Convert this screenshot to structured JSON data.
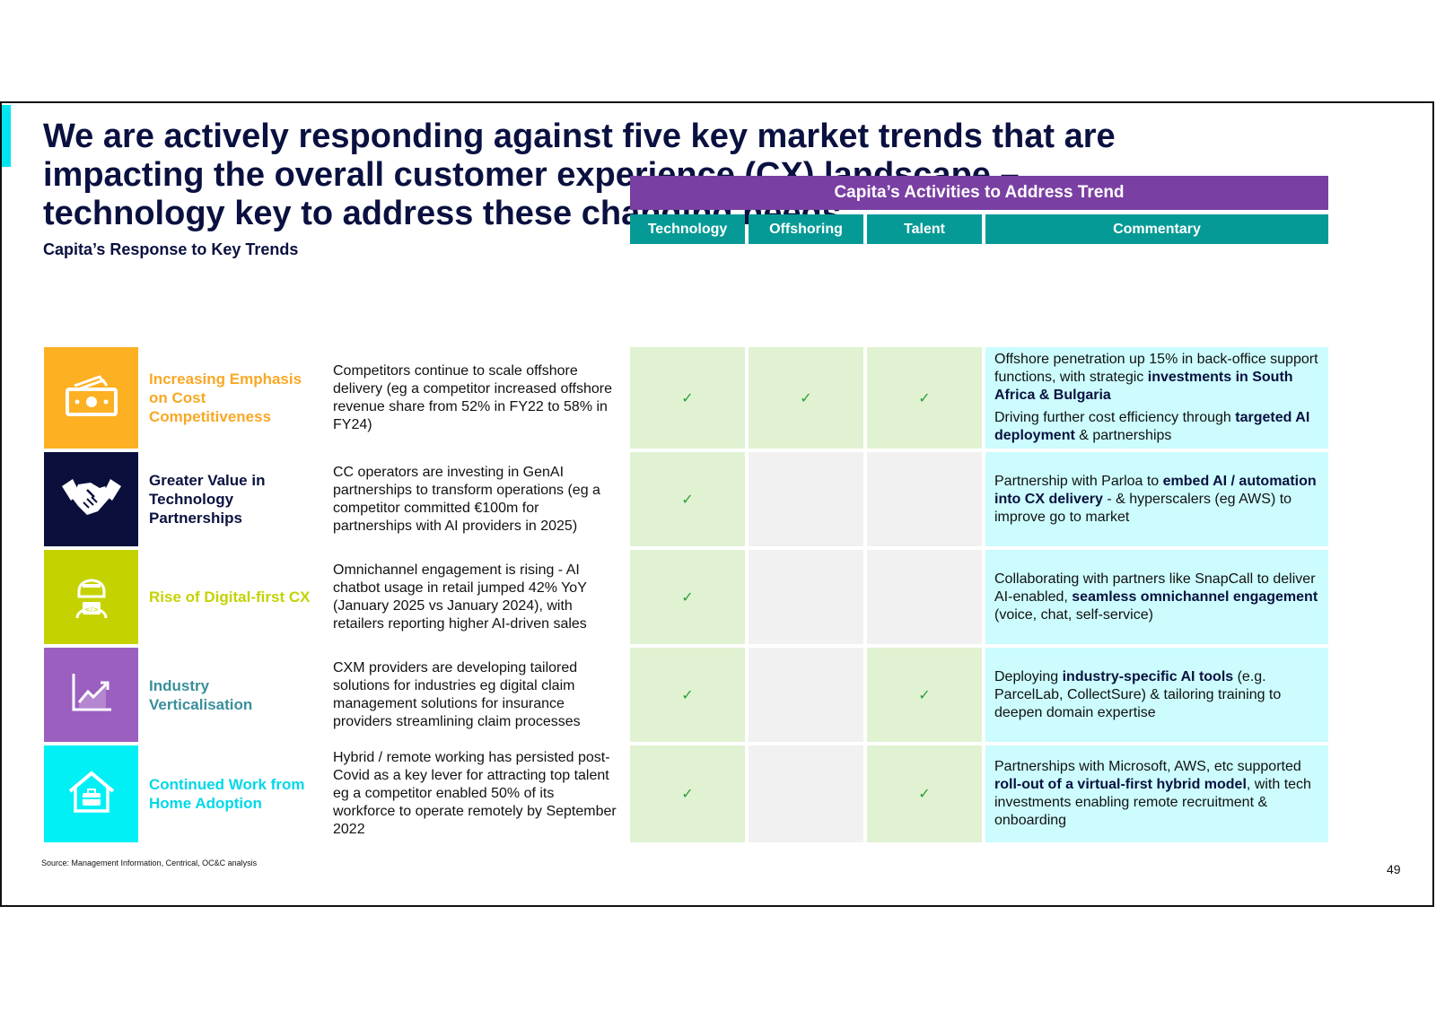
{
  "title": "We are actively responding against five key market trends that are impacting the overall customer experience (CX) landscape – technology key to address these changing needs",
  "subtitle": "Capita’s Response to Key Trends",
  "banner": "Capita’s Activities to Address Trend",
  "columns": {
    "technology": "Technology",
    "offshoring": "Offshoring",
    "talent": "Talent",
    "commentary": "Commentary"
  },
  "check": "✓",
  "colors": {
    "navy": "#0a1140",
    "purple": "#7a3fa2",
    "teal": "#069a96",
    "green_cell": "#e0f2d2",
    "gray_cell": "#f1f1f1",
    "cyan_cell": "#ccfcfd",
    "orange": "#fdb022",
    "lime": "#c4d300",
    "violet": "#9b5fc0",
    "cyan": "#00f0f5"
  },
  "rows": [
    {
      "icon": "money-icon",
      "icon_color": "#fdb022",
      "label": "Increasing Emphasis on Cost Competitiveness",
      "label_color": "#f9a825",
      "description": "Competitors continue to scale offshore delivery (eg a competitor increased offshore revenue share from 52% in FY22 to 58% in FY24)",
      "technology": true,
      "offshoring": true,
      "talent": true,
      "commentary": [
        [
          {
            "t": "Offshore penetration up 15% in back-office support functions, with strategic "
          },
          {
            "t": "investments in South Africa & Bulgaria",
            "b": true
          }
        ],
        [
          {
            "t": "Driving further cost efficiency through "
          },
          {
            "t": "targeted AI deployment",
            "b": true
          },
          {
            "t": " & partnerships"
          }
        ]
      ]
    },
    {
      "icon": "handshake-icon",
      "icon_color": "#0a0f3c",
      "label": "Greater Value in Technology Partnerships",
      "label_color": "#0a1140",
      "description": "CC operators are investing in GenAI partnerships to transform operations (eg a competitor committed €100m for partnerships with AI providers in 2025)",
      "technology": true,
      "offshoring": false,
      "talent": false,
      "commentary": [
        [
          {
            "t": "Partnership with Parloa to "
          },
          {
            "t": "embed AI / automation into CX delivery",
            "b": true
          },
          {
            "t": " - & hyperscalers (eg AWS) to improve go to market"
          }
        ]
      ]
    },
    {
      "icon": "developer-icon",
      "icon_color": "#c4d300",
      "label": "Rise of Digital-first CX",
      "label_color": "#c4d300",
      "description": "Omnichannel engagement is rising - AI chatbot usage in retail jumped 42% YoY (January 2025 vs January 2024), with retailers reporting higher AI-driven sales",
      "technology": true,
      "offshoring": false,
      "talent": false,
      "commentary": [
        [
          {
            "t": "Collaborating with partners like SnapCall to deliver AI-enabled, "
          },
          {
            "t": "seamless omnichannel engagement",
            "b": true
          },
          {
            "t": " (voice, chat, self-service)"
          }
        ]
      ]
    },
    {
      "icon": "growth-chart-icon",
      "icon_color": "#9b5fc0",
      "label": "Industry Verticalisation",
      "label_color": "#3a8f9a",
      "description": "CXM providers are developing tailored solutions for industries eg digital claim management solutions for insurance providers streamlining claim processes",
      "technology": true,
      "offshoring": false,
      "talent": true,
      "commentary": [
        [
          {
            "t": "Deploying "
          },
          {
            "t": "industry-specific AI tools",
            "b": true
          },
          {
            "t": " (e.g. ParcelLab, CollectSure) & tailoring training to deepen domain expertise"
          }
        ]
      ]
    },
    {
      "icon": "home-work-icon",
      "icon_color": "#00f0f5",
      "label": "Continued Work from Home Adoption",
      "label_color": "#00d8e8",
      "description": "Hybrid / remote working has persisted post-Covid as a key lever for attracting top talent eg a competitor enabled 50% of its workforce to operate remotely by September 2022",
      "technology": true,
      "offshoring": false,
      "talent": true,
      "commentary": [
        [
          {
            "t": "Partnerships with Microsoft, AWS, etc supported "
          },
          {
            "t": "roll-out of a virtual-first hybrid model",
            "b": true
          },
          {
            "t": ", with tech investments enabling remote recruitment & onboarding"
          }
        ]
      ]
    }
  ],
  "source": "Source: Management Information, Centrical, OC&C analysis",
  "page_number": "49"
}
